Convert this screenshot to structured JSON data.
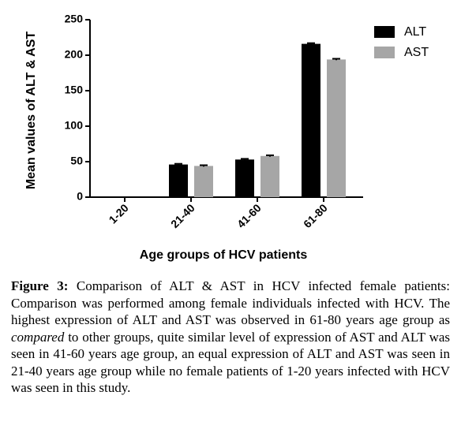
{
  "chart_data": {
    "type": "bar",
    "y_label": "Mean values of ALT & AST",
    "x_label": "Age groups of HCV patients",
    "categories": [
      "1-20",
      "21-40",
      "41-60",
      "61-80"
    ],
    "series": [
      {
        "name": "ALT",
        "color": "#000000",
        "values": [
          0,
          46,
          53,
          216
        ],
        "errors": [
          null,
          1,
          1,
          1
        ]
      },
      {
        "name": "AST",
        "color": "#a6a6a6",
        "values": [
          0,
          44,
          58,
          194
        ],
        "errors": [
          null,
          1,
          1,
          1
        ]
      }
    ],
    "ylim": [
      0,
      250
    ],
    "yticks": [
      0,
      50,
      100,
      150,
      200,
      250
    ],
    "grid": false,
    "legend": "upper right"
  },
  "caption": {
    "label": "Figure 3:",
    "parts": [
      "Comparison of ALT & AST in HCV infected female patients: Comparison was performed among female individuals infected with HCV. The highest expression of ALT and AST was observed in 61-80 years age group as",
      "compared",
      "to other groups, quite similar level of expression of AST and ALT was seen in 41-60 years age group, an equal expression of ALT and AST was seen in 21-40 years age group while no female patients of 1-20 years infected with HCV was seen in this study."
    ]
  }
}
